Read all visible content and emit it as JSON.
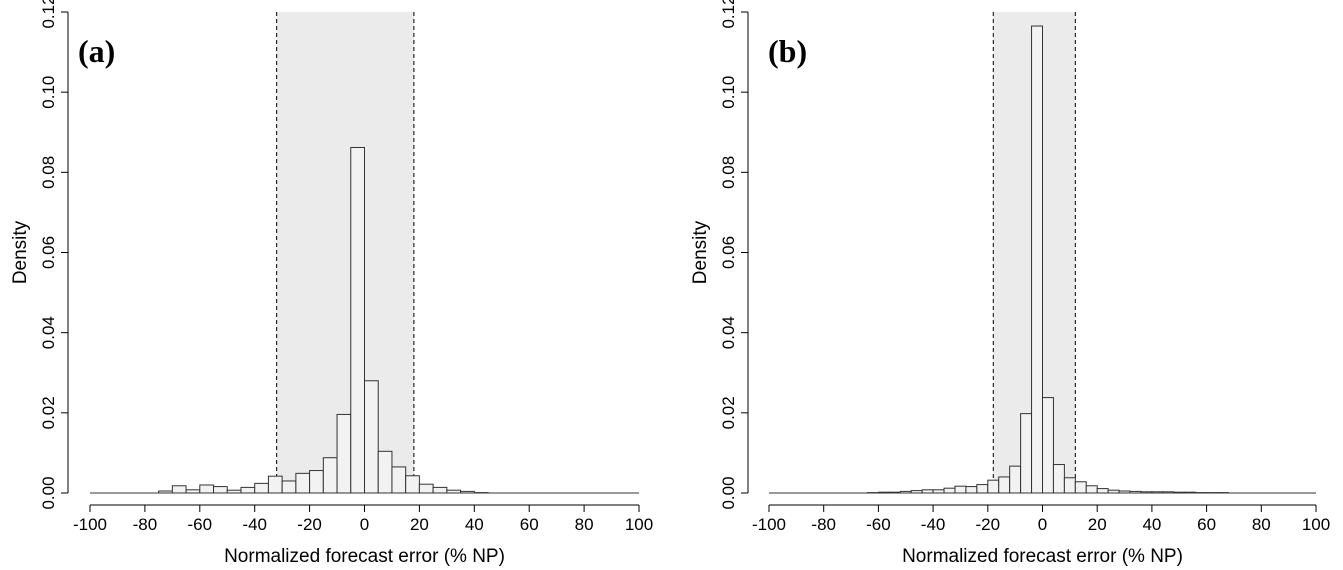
{
  "chart_data": [
    {
      "type": "bar",
      "panel_label": "(a)",
      "xlabel": "Normalized forecast error (% NP)",
      "ylabel": "Density",
      "xlim": [
        -100,
        100
      ],
      "ylim": [
        0,
        0.12
      ],
      "xticks": [
        -100,
        -80,
        -60,
        -40,
        -20,
        0,
        20,
        40,
        60,
        80,
        100
      ],
      "yticks": [
        0.0,
        0.02,
        0.04,
        0.06,
        0.08,
        0.1,
        0.12
      ],
      "ytick_labels": [
        "0.00",
        "0.02",
        "0.04",
        "0.06",
        "0.08",
        "0.10",
        "0.12"
      ],
      "bin_width": 5,
      "bin_starts": [
        -75,
        -70,
        -65,
        -60,
        -55,
        -50,
        -45,
        -40,
        -35,
        -30,
        -25,
        -20,
        -15,
        -10,
        -5,
        0,
        5,
        10,
        15,
        20,
        25,
        30,
        35,
        40
      ],
      "values": [
        0.0005,
        0.0018,
        0.0008,
        0.002,
        0.0016,
        0.0007,
        0.0014,
        0.0024,
        0.0042,
        0.003,
        0.0049,
        0.0056,
        0.0088,
        0.0196,
        0.0862,
        0.028,
        0.0104,
        0.0065,
        0.0043,
        0.0022,
        0.0014,
        0.0007,
        0.0004,
        0.0001
      ],
      "shaded_interval": [
        -32,
        18
      ],
      "grid": false
    },
    {
      "type": "bar",
      "panel_label": "(b)",
      "xlabel": "Normalized forecast error (% NP)",
      "ylabel": "Density",
      "xlim": [
        -100,
        100
      ],
      "ylim": [
        0,
        0.12
      ],
      "xticks": [
        -100,
        -80,
        -60,
        -40,
        -20,
        0,
        20,
        40,
        60,
        80,
        100
      ],
      "yticks": [
        0.0,
        0.02,
        0.04,
        0.06,
        0.08,
        0.1,
        0.12
      ],
      "ytick_labels": [
        "0.00",
        "0.02",
        "0.04",
        "0.06",
        "0.08",
        "0.10",
        "0.12"
      ],
      "bin_width": 4,
      "bin_starts": [
        -64,
        -60,
        -56,
        -52,
        -48,
        -44,
        -40,
        -36,
        -32,
        -28,
        -24,
        -20,
        -16,
        -12,
        -8,
        -4,
        0,
        4,
        8,
        12,
        16,
        20,
        24,
        28,
        32,
        36,
        40,
        44,
        48,
        52,
        56,
        60,
        64
      ],
      "values": [
        0.0001,
        0.0002,
        0.0002,
        0.0004,
        0.0006,
        0.0008,
        0.0008,
        0.0012,
        0.0017,
        0.0016,
        0.0021,
        0.0032,
        0.004,
        0.0067,
        0.0198,
        0.1165,
        0.0238,
        0.0071,
        0.0038,
        0.0028,
        0.0018,
        0.0011,
        0.0007,
        0.0005,
        0.0004,
        0.0003,
        0.0003,
        0.0003,
        0.0002,
        0.0002,
        0.0001,
        0.0001,
        0.0001
      ],
      "shaded_interval": [
        -18,
        12
      ],
      "grid": false
    }
  ]
}
